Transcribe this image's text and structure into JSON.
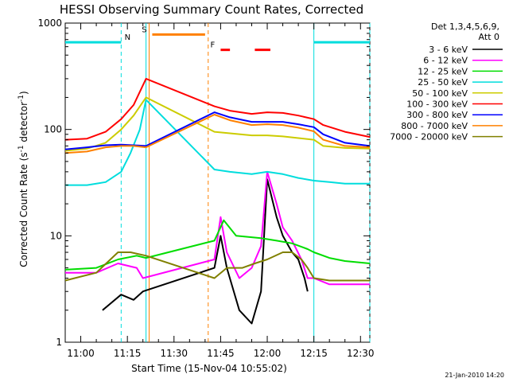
{
  "chart_data": {
    "type": "line",
    "title": "HESSI Observing Summary Count Rates, Corrected",
    "xlabel": "Start Time (15-Nov-04 10:55:02)",
    "ylabel_main": "Corrected Count Rate (s",
    "ylabel_sup1": "-1",
    "ylabel_mid": " detector",
    "ylabel_sup2": "-1",
    "ylabel_end": ")",
    "yscale": "log",
    "ylim": [
      1,
      1000
    ],
    "xlim": [
      "10:55",
      "12:33"
    ],
    "x_ticks": [
      "11:00",
      "11:15",
      "11:30",
      "11:45",
      "12:00",
      "12:15",
      "12:30"
    ],
    "y_ticks": [
      "1",
      "10",
      "100",
      "1000"
    ],
    "timestamp": "21-Jan-2010 14:20",
    "legend_header": [
      "Det 1,3,4,5,6,9,",
      "Att 0"
    ],
    "series": [
      {
        "name": "3 - 6 keV",
        "color": "#000000",
        "points": [
          [
            "11:07",
            2
          ],
          [
            "11:13",
            2.8
          ],
          [
            "11:17",
            2.5
          ],
          [
            "11:20",
            3
          ],
          [
            "11:43",
            5
          ],
          [
            "11:45",
            10
          ],
          [
            "11:47",
            5
          ],
          [
            "11:51",
            2
          ],
          [
            "11:55",
            1.5
          ],
          [
            "11:58",
            3
          ],
          [
            "12:00",
            34
          ],
          [
            "12:03",
            15
          ],
          [
            "12:05",
            10
          ],
          [
            "12:08",
            7
          ],
          [
            "12:10",
            6
          ],
          [
            "12:12",
            4
          ],
          [
            "12:13",
            3
          ]
        ]
      },
      {
        "name": "6 - 12 keV",
        "color": "#ff00ff",
        "points": [
          [
            "10:55",
            4.5
          ],
          [
            "11:05",
            4.5
          ],
          [
            "11:12",
            5.5
          ],
          [
            "11:18",
            5
          ],
          [
            "11:20",
            4
          ],
          [
            "11:43",
            6
          ],
          [
            "11:45",
            15
          ],
          [
            "11:47",
            7
          ],
          [
            "11:51",
            4
          ],
          [
            "11:55",
            5
          ],
          [
            "11:58",
            8
          ],
          [
            "12:00",
            40
          ],
          [
            "12:03",
            20
          ],
          [
            "12:05",
            12
          ],
          [
            "12:08",
            9
          ],
          [
            "12:11",
            6
          ],
          [
            "12:13",
            4
          ],
          [
            "12:15",
            4
          ],
          [
            "12:20",
            3.5
          ],
          [
            "12:33",
            3.5
          ]
        ]
      },
      {
        "name": "12 - 25 keV",
        "color": "#00dd00",
        "points": [
          [
            "10:55",
            4.8
          ],
          [
            "11:05",
            5
          ],
          [
            "11:12",
            6
          ],
          [
            "11:18",
            6.5
          ],
          [
            "11:21",
            6.2
          ],
          [
            "11:43",
            9
          ],
          [
            "11:46",
            14
          ],
          [
            "11:50",
            10
          ],
          [
            "11:58",
            9.5
          ],
          [
            "12:03",
            9
          ],
          [
            "12:08",
            8.5
          ],
          [
            "12:13",
            7.5
          ],
          [
            "12:15",
            7
          ],
          [
            "12:20",
            6.2
          ],
          [
            "12:25",
            5.8
          ],
          [
            "12:33",
            5.5
          ]
        ]
      },
      {
        "name": "25 - 50 keV",
        "color": "#00dddd",
        "points": [
          [
            "10:55",
            30
          ],
          [
            "11:02",
            30
          ],
          [
            "11:08",
            32
          ],
          [
            "11:13",
            40
          ],
          [
            "11:16",
            60
          ],
          [
            "11:19",
            100
          ],
          [
            "11:21",
            190
          ],
          [
            "11:43",
            42
          ],
          [
            "11:48",
            40
          ],
          [
            "11:55",
            38
          ],
          [
            "12:00",
            40
          ],
          [
            "12:05",
            38
          ],
          [
            "12:10",
            35
          ],
          [
            "12:15",
            33
          ],
          [
            "12:20",
            32
          ],
          [
            "12:25",
            31
          ],
          [
            "12:33",
            31
          ]
        ]
      },
      {
        "name": "50 - 100 keV",
        "color": "#cccc00",
        "points": [
          [
            "10:55",
            63
          ],
          [
            "11:02",
            66
          ],
          [
            "11:08",
            75
          ],
          [
            "11:13",
            100
          ],
          [
            "11:17",
            135
          ],
          [
            "11:21",
            200
          ],
          [
            "11:43",
            95
          ],
          [
            "11:48",
            92
          ],
          [
            "11:55",
            88
          ],
          [
            "12:00",
            88
          ],
          [
            "12:05",
            86
          ],
          [
            "12:10",
            83
          ],
          [
            "12:15",
            80
          ],
          [
            "12:18",
            70
          ],
          [
            "12:25",
            67
          ],
          [
            "12:33",
            66
          ]
        ]
      },
      {
        "name": "100 - 300 keV",
        "color": "#ff0000",
        "points": [
          [
            "10:55",
            80
          ],
          [
            "11:02",
            82
          ],
          [
            "11:08",
            95
          ],
          [
            "11:13",
            125
          ],
          [
            "11:17",
            170
          ],
          [
            "11:21",
            300
          ],
          [
            "11:43",
            165
          ],
          [
            "11:48",
            150
          ],
          [
            "11:55",
            140
          ],
          [
            "12:00",
            145
          ],
          [
            "12:05",
            143
          ],
          [
            "12:10",
            135
          ],
          [
            "12:15",
            125
          ],
          [
            "12:18",
            110
          ],
          [
            "12:25",
            95
          ],
          [
            "12:33",
            85
          ]
        ]
      },
      {
        "name": "300 - 800 keV",
        "color": "#0000ff",
        "points": [
          [
            "10:55",
            65
          ],
          [
            "11:02",
            68
          ],
          [
            "11:08",
            71
          ],
          [
            "11:13",
            72
          ],
          [
            "11:17",
            71
          ],
          [
            "11:21",
            70
          ],
          [
            "11:43",
            145
          ],
          [
            "11:48",
            130
          ],
          [
            "11:55",
            118
          ],
          [
            "12:00",
            118
          ],
          [
            "12:05",
            118
          ],
          [
            "12:10",
            112
          ],
          [
            "12:15",
            105
          ],
          [
            "12:18",
            90
          ],
          [
            "12:25",
            75
          ],
          [
            "12:33",
            70
          ]
        ]
      },
      {
        "name": "800 - 7000 keV",
        "color": "#ff8000",
        "points": [
          [
            "10:55",
            60
          ],
          [
            "11:02",
            62
          ],
          [
            "11:08",
            68
          ],
          [
            "11:13",
            70
          ],
          [
            "11:17",
            70
          ],
          [
            "11:21",
            68
          ],
          [
            "11:43",
            138
          ],
          [
            "11:48",
            122
          ],
          [
            "11:55",
            110
          ],
          [
            "12:00",
            112
          ],
          [
            "12:05",
            110
          ],
          [
            "12:10",
            104
          ],
          [
            "12:15",
            96
          ],
          [
            "12:18",
            80
          ],
          [
            "12:25",
            70
          ],
          [
            "12:33",
            68
          ]
        ]
      },
      {
        "name": "7000 - 20000 keV",
        "color": "#808000",
        "points": [
          [
            "10:55",
            3.8
          ],
          [
            "11:05",
            4.5
          ],
          [
            "11:12",
            7
          ],
          [
            "11:16",
            7
          ],
          [
            "11:21",
            6.5
          ],
          [
            "11:43",
            4
          ],
          [
            "11:47",
            5
          ],
          [
            "11:52",
            5
          ],
          [
            "11:56",
            5.5
          ],
          [
            "12:00",
            6
          ],
          [
            "12:05",
            7
          ],
          [
            "12:08",
            7
          ],
          [
            "12:11",
            6
          ],
          [
            "12:13",
            5
          ],
          [
            "12:15",
            4
          ],
          [
            "12:20",
            3.8
          ],
          [
            "12:33",
            3.8
          ]
        ]
      }
    ],
    "flags": [
      {
        "label": "N",
        "color": "#00dddd",
        "type": "segments",
        "segments": [
          [
            "10:55",
            "11:13"
          ],
          [
            "12:15",
            "12:33"
          ]
        ],
        "level": 660
      },
      {
        "label": "S",
        "color": "#ff8000",
        "type": "segments",
        "segments": [
          [
            "11:23",
            "11:40"
          ]
        ],
        "level": 780
      },
      {
        "label": "F",
        "color": "#ff0000",
        "type": "segments",
        "segments": [
          [
            "11:45",
            "11:48"
          ],
          [
            "11:56",
            "12:01"
          ]
        ],
        "level": 560
      }
    ],
    "vlines": [
      {
        "time": "11:13",
        "color": "#00dddd",
        "style": "dashed"
      },
      {
        "time": "11:21",
        "color": "#00dddd",
        "style": "solid"
      },
      {
        "time": "11:22",
        "color": "#ff8000",
        "style": "solid"
      },
      {
        "time": "11:41",
        "color": "#ff8000",
        "style": "dashed"
      },
      {
        "time": "12:15",
        "color": "#00dddd",
        "style": "solid"
      },
      {
        "time": "12:33",
        "color": "#00dddd",
        "style": "dashed"
      }
    ]
  }
}
